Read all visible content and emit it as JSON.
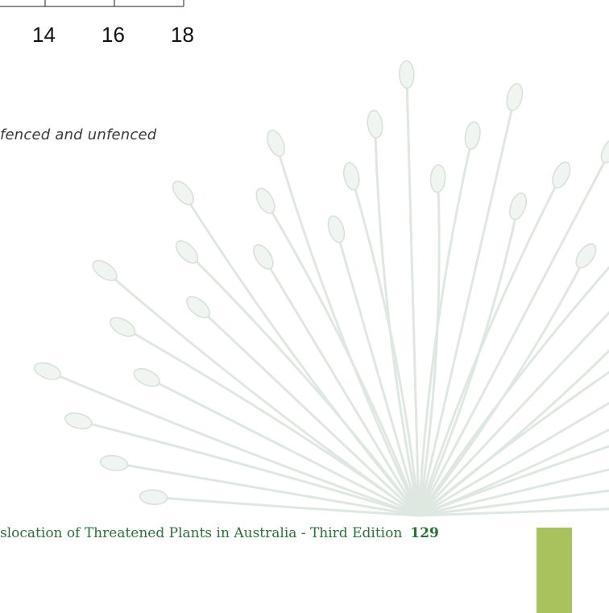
{
  "figure_fragment": {
    "x_tick_labels": [
      "14",
      "16",
      "18"
    ]
  },
  "caption_fragment": "fenced and unfenced",
  "footer": {
    "title": "slocation of Threatened Plants in Australia - Third Edition",
    "page_number": "129"
  }
}
